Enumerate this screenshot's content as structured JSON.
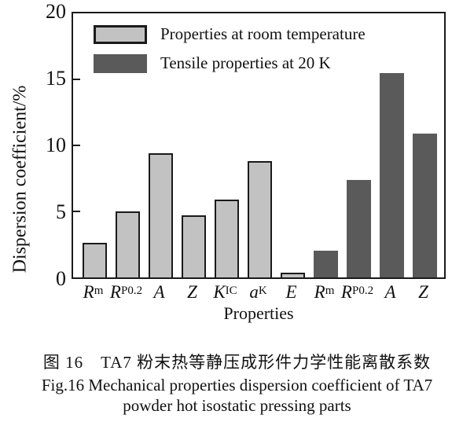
{
  "figure": {
    "y_axis": {
      "label": "Dispersion coefficient/%",
      "tick_font_color": "#111111"
    },
    "x_axis": {
      "label": "Properties"
    },
    "legend": [
      {
        "label": "Properties at room temperature",
        "color": "#c2c2c2",
        "bordered": true
      },
      {
        "label": "Tensile properties at 20 K",
        "color": "#5a5a5a",
        "bordered": false
      }
    ],
    "frame_color": "#1a1a1a"
  },
  "chart_data": {
    "type": "bar",
    "title": "",
    "xlabel": "Properties",
    "ylabel": "Dispersion coefficient/%",
    "ylim": [
      0,
      20
    ],
    "yticks": [
      20,
      15,
      10,
      5,
      0
    ],
    "grid": false,
    "legend_position": "upper-left-inside",
    "categories": [
      "R_m",
      "R_P0.2",
      "A",
      "Z",
      "K_IC",
      "a_K",
      "E",
      "R_m",
      "R_P0.2",
      "A",
      "Z"
    ],
    "series": [
      {
        "name": "Properties at room temperature",
        "color": "#c2c2c2",
        "categories": [
          "R_m",
          "R_P0.2",
          "A",
          "Z",
          "K_IC",
          "a_K",
          "E"
        ],
        "values": [
          2.6,
          5.0,
          9.4,
          4.7,
          5.9,
          8.8,
          0.35
        ]
      },
      {
        "name": "Tensile properties at 20 K",
        "color": "#5a5a5a",
        "categories": [
          "R_m",
          "R_P0.2",
          "A",
          "Z"
        ],
        "values": [
          2.0,
          7.4,
          15.5,
          10.9
        ]
      }
    ],
    "bars": [
      {
        "base": "R",
        "sub": "m",
        "value": 2.6,
        "group": "room"
      },
      {
        "base": "R",
        "sub": "P0.2",
        "value": 5.0,
        "group": "room"
      },
      {
        "base": "A",
        "sub": "",
        "value": 9.4,
        "group": "room"
      },
      {
        "base": "Z",
        "sub": "",
        "value": 4.7,
        "group": "room"
      },
      {
        "base": "K",
        "sub": "IC",
        "value": 5.9,
        "group": "room"
      },
      {
        "base": "a",
        "sub": "K",
        "value": 8.8,
        "group": "room"
      },
      {
        "base": "E",
        "sub": "",
        "value": 0.35,
        "group": "room"
      },
      {
        "base": "R",
        "sub": "m",
        "value": 2.0,
        "group": "cold"
      },
      {
        "base": "R",
        "sub": "P0.2",
        "value": 7.4,
        "group": "cold"
      },
      {
        "base": "A",
        "sub": "",
        "value": 15.5,
        "group": "cold"
      },
      {
        "base": "Z",
        "sub": "",
        "value": 10.9,
        "group": "cold"
      }
    ]
  },
  "caption": {
    "zh": "图 16　TA7 粉末热等静压成形件力学性能离散系数",
    "en_line1": "Fig.16 Mechanical properties dispersion coefficient of TA7",
    "en_line2": "powder hot isostatic pressing parts"
  }
}
